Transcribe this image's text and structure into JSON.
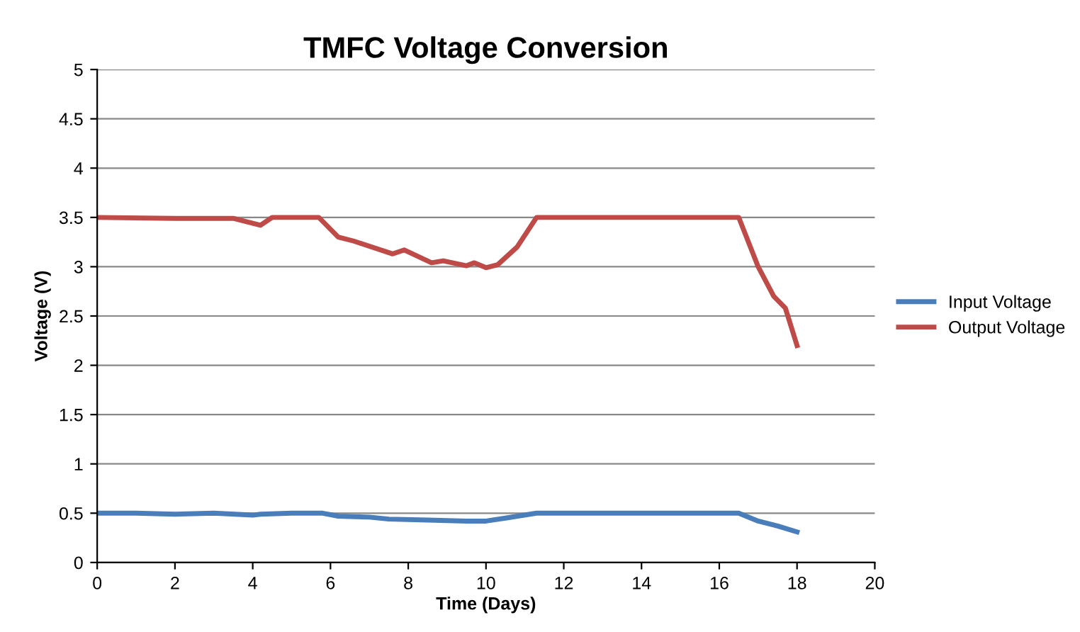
{
  "chart_data": {
    "type": "line",
    "title": "TMFC Voltage Conversion",
    "xlabel": "Time (Days)",
    "ylabel": "Voltage (V)",
    "xlim": [
      0,
      20
    ],
    "xticks": [
      0,
      2,
      4,
      6,
      8,
      10,
      12,
      14,
      16,
      18,
      20
    ],
    "ylim": [
      0,
      5
    ],
    "yticks": [
      0,
      0.5,
      1,
      1.5,
      2,
      2.5,
      3,
      3.5,
      4,
      4.5,
      5
    ],
    "grid": "y",
    "legend": "right",
    "marker": "none",
    "line_style": "solid",
    "series": [
      {
        "name": "Input Voltage",
        "color": "#4a7ebb",
        "x": [
          0,
          1,
          2,
          3,
          4,
          4.2,
          5,
          5.8,
          6.2,
          7,
          7.5,
          8.5,
          9.5,
          10,
          10.5,
          11.3,
          13,
          16.5,
          17,
          17.5,
          18
        ],
        "values": [
          0.5,
          0.5,
          0.49,
          0.5,
          0.48,
          0.49,
          0.5,
          0.5,
          0.47,
          0.46,
          0.44,
          0.43,
          0.42,
          0.42,
          0.45,
          0.5,
          0.5,
          0.5,
          0.42,
          0.37,
          0.31
        ]
      },
      {
        "name": "Output Voltage",
        "color": "#be4b48",
        "x": [
          0,
          2,
          3.5,
          4,
          4.2,
          4.5,
          5.7,
          6.2,
          6.6,
          7.6,
          7.9,
          8.6,
          8.9,
          9.5,
          9.7,
          10,
          10.3,
          10.8,
          11.3,
          13,
          16.5,
          17,
          17.4,
          17.7,
          18
        ],
        "values": [
          3.5,
          3.49,
          3.49,
          3.44,
          3.42,
          3.5,
          3.5,
          3.3,
          3.26,
          3.13,
          3.17,
          3.04,
          3.06,
          3.01,
          3.04,
          2.99,
          3.02,
          3.2,
          3.5,
          3.5,
          3.5,
          3.0,
          2.7,
          2.58,
          2.2
        ]
      }
    ]
  }
}
